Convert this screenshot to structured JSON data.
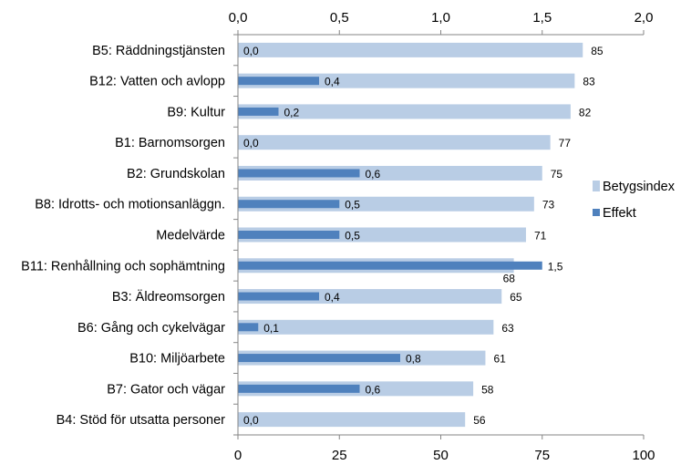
{
  "chart_data": {
    "type": "bar",
    "orientation": "horizontal",
    "categories": [
      "B5: Räddningstjänsten",
      "B12: Vatten och avlopp",
      "B9: Kultur",
      "B1: Barnomsorgen",
      "B2: Grundskolan",
      "B8: Idrotts- och motionsanläggn.",
      "Medelvärde",
      "B11: Renhållning och sophämtning",
      "B3: Äldreomsorgen",
      "B6: Gång och cykelvägar",
      "B10: Miljöarbete",
      "B7: Gator och vägar",
      "B4: Stöd för utsatta personer"
    ],
    "series": [
      {
        "name": "Betygsindex",
        "axis": "bottom",
        "color": "#B9CDE5",
        "values": [
          85,
          83,
          82,
          77,
          75,
          73,
          71,
          68,
          65,
          63,
          61,
          58,
          56
        ],
        "labels": [
          "85",
          "83",
          "82",
          "77",
          "75",
          "73",
          "71",
          "68",
          "65",
          "63",
          "61",
          "58",
          "56"
        ]
      },
      {
        "name": "Effekt",
        "axis": "top",
        "color": "#4F81BD",
        "values": [
          0.0,
          0.4,
          0.2,
          0.0,
          0.6,
          0.5,
          0.5,
          1.5,
          0.4,
          0.1,
          0.8,
          0.6,
          0.0
        ],
        "labels": [
          "0,0",
          "0,4",
          "0,2",
          "0,0",
          "0,6",
          "0,5",
          "0,5",
          "1,5",
          "0,4",
          "0,1",
          "0,8",
          "0,6",
          "0,0"
        ]
      }
    ],
    "x_bottom": {
      "range": [
        0,
        100
      ],
      "ticks": [
        0,
        25,
        50,
        75,
        100
      ],
      "tick_labels": [
        "0",
        "25",
        "50",
        "75",
        "100"
      ]
    },
    "x_top": {
      "range": [
        0,
        2
      ],
      "ticks": [
        0,
        0.5,
        1,
        1.5,
        2
      ],
      "tick_labels": [
        "0,0",
        "0,5",
        "1,0",
        "1,5",
        "2,0"
      ]
    },
    "grid": false,
    "legend": {
      "position": "right",
      "entries": [
        "Betygsindex",
        "Effekt"
      ]
    }
  }
}
